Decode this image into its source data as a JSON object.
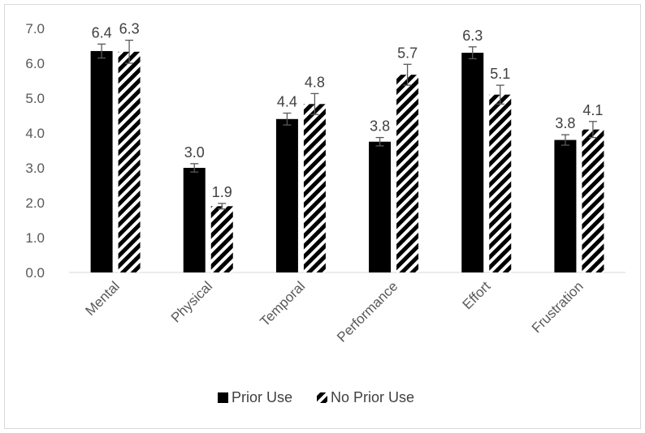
{
  "chart_data": {
    "type": "bar",
    "categories": [
      "Mental",
      "Physical",
      "Temporal",
      "Performance",
      "Effort",
      "Frustration"
    ],
    "series": [
      {
        "name": "Prior Use",
        "values": [
          6.35,
          3.0,
          4.4,
          3.75,
          6.3,
          3.8
        ],
        "labels": [
          "6.4",
          "3.0",
          "4.4",
          "3.8",
          "6.3",
          "3.8"
        ],
        "errors": [
          0.2,
          0.12,
          0.17,
          0.12,
          0.17,
          0.15
        ],
        "color": "#000000",
        "pattern": "solid"
      },
      {
        "name": "No Prior Use",
        "values": [
          6.33,
          1.9,
          4.83,
          5.67,
          5.1,
          4.1
        ],
        "labels": [
          "6.3",
          "1.9",
          "4.8",
          "5.7",
          "5.1",
          "4.1"
        ],
        "errors": [
          0.33,
          0.08,
          0.3,
          0.3,
          0.27,
          0.23
        ],
        "color": "#000000",
        "pattern": "diagonal-stripes"
      }
    ],
    "yticks": [
      "0.0",
      "1.0",
      "2.0",
      "3.0",
      "4.0",
      "5.0",
      "6.0",
      "7.0"
    ],
    "ylim": [
      0,
      7
    ],
    "grid": false,
    "legend": "bottom",
    "title": "",
    "xlabel": "",
    "ylabel": ""
  }
}
